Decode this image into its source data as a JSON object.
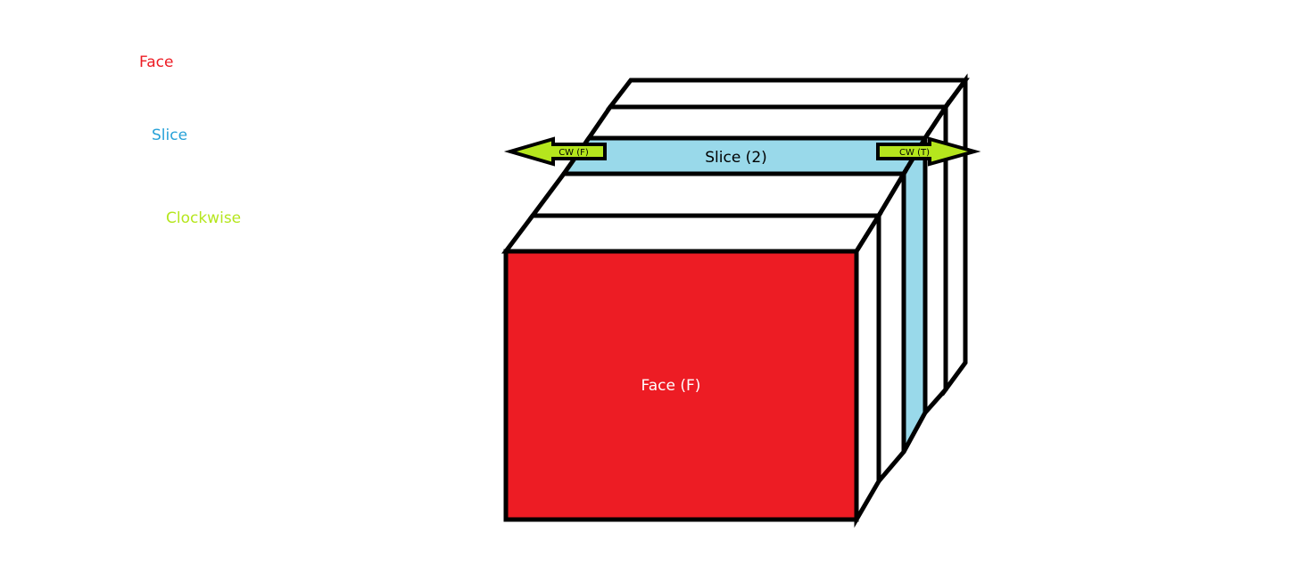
{
  "legend": {
    "face": {
      "label": "Face",
      "color": "#ED1C24"
    },
    "slice": {
      "label": "Slice",
      "color": "#26A1D8"
    },
    "clockwise": {
      "label": "Clockwise",
      "color": "#B5E61D"
    }
  },
  "cube": {
    "front_face_label": "Face (F)",
    "front_face_color": "#ED1C24",
    "slice_label": "Slice (2)",
    "slice_color": "#99D9EA",
    "outline_color": "#000000",
    "arrows": [
      {
        "label": "CW (F)",
        "direction": "left",
        "color": "#B5E61D"
      },
      {
        "label": "CW (T)",
        "direction": "right",
        "color": "#B5E61D"
      }
    ]
  }
}
